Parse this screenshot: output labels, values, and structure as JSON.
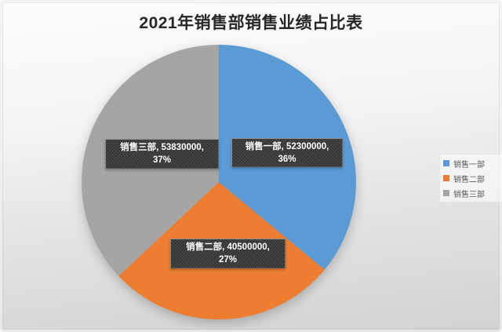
{
  "title": "2021年销售部销售业绩占比表",
  "chart_data": {
    "type": "pie",
    "title": "2021年销售部销售业绩占比表",
    "categories": [
      "销售一部",
      "销售二部",
      "销售三部"
    ],
    "values": [
      52300000,
      40500000,
      53830000
    ],
    "percents": [
      36,
      27,
      37
    ],
    "colors": [
      "#5B9BD5",
      "#ED7D31",
      "#A5A5A5"
    ],
    "start_angle_deg": 0,
    "direction": "clockwise",
    "legend_position": "right",
    "data_label_format": "name, value, percent"
  },
  "slice_labels": [
    {
      "line1": "销售一部, 52300000,",
      "line2": "36%"
    },
    {
      "line1": "销售二部, 40500000,",
      "line2": "27%"
    },
    {
      "line1": "销售三部, 53830000,",
      "line2": "37%"
    }
  ],
  "legend": {
    "items": [
      {
        "label": "销售一部",
        "color": "#5B9BD5"
      },
      {
        "label": "销售二部",
        "color": "#ED7D31"
      },
      {
        "label": "销售三部",
        "color": "#A5A5A5"
      }
    ]
  }
}
